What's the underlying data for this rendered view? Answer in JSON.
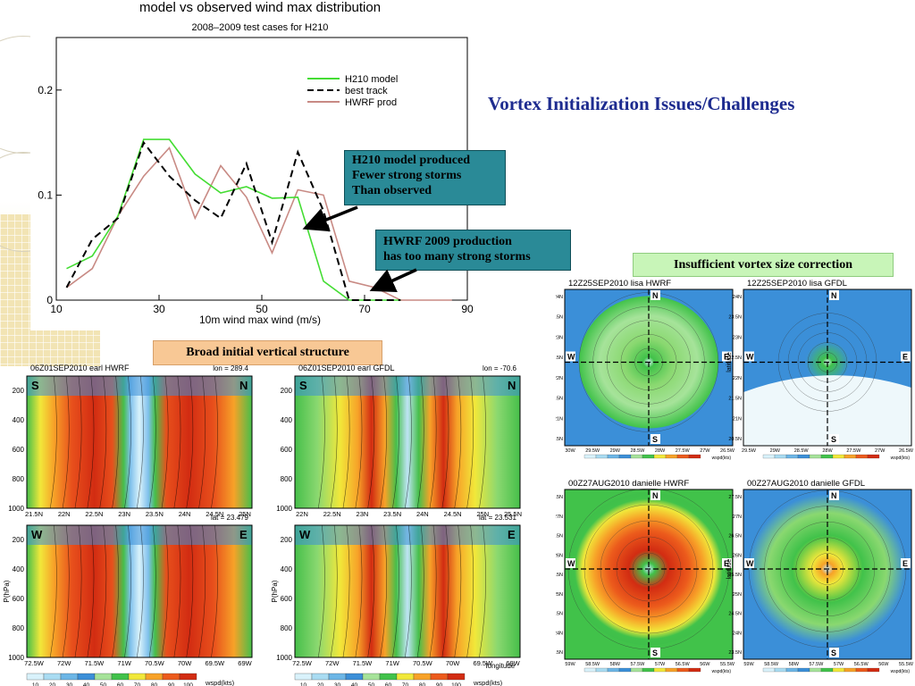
{
  "slide_title": "Vortex Initialization Issues/Challenges",
  "callouts": {
    "h210": [
      "H210 model produced",
      "Fewer strong storms",
      "Than observed"
    ],
    "hwrf": [
      "HWRF 2009 production",
      "has too many strong storms"
    ],
    "broad": "Broad initial vertical structure",
    "insufficient": "Insufficient vortex size correction"
  },
  "chart_data": {
    "type": "line",
    "title": "model vs observed wind max distribution",
    "subtitle": "2008–2009 test cases for H210",
    "xlabel": "10m wind max wind (m/s)",
    "ylabel": "",
    "xlim": [
      10,
      90
    ],
    "ylim": [
      0,
      0.25
    ],
    "xticks": [
      "10",
      "30",
      "50",
      "70",
      "90"
    ],
    "yticks": [
      "0",
      "0.1",
      "0.2"
    ],
    "legend": "top-right",
    "series": [
      {
        "name": "H210 model",
        "color": "#44dd33",
        "dash": "solid",
        "x": [
          12,
          17,
          22,
          27,
          32,
          37,
          42,
          47,
          52,
          57,
          62,
          67,
          72,
          77
        ],
        "y": [
          0.03,
          0.042,
          0.08,
          0.153,
          0.153,
          0.12,
          0.102,
          0.108,
          0.097,
          0.098,
          0.018,
          0,
          0,
          0
        ]
      },
      {
        "name": "best track",
        "color": "#000000",
        "dash": "dashed",
        "x": [
          12,
          17,
          22,
          27,
          32,
          37,
          42,
          47,
          52,
          57,
          62,
          67,
          72,
          77
        ],
        "y": [
          0.012,
          0.058,
          0.078,
          0.15,
          0.118,
          0.095,
          0.078,
          0.13,
          0.055,
          0.141,
          0.085,
          0,
          0,
          0
        ]
      },
      {
        "name": "HWRF prod",
        "color": "#c88a84",
        "dash": "solid",
        "x": [
          12,
          17,
          22,
          27,
          32,
          37,
          42,
          47,
          52,
          57,
          62,
          67,
          72,
          77,
          82,
          87
        ],
        "y": [
          0.012,
          0.03,
          0.08,
          0.118,
          0.145,
          0.078,
          0.128,
          0.098,
          0.045,
          0.105,
          0.1,
          0.018,
          0.012,
          0,
          0,
          0
        ]
      }
    ]
  },
  "cross_sections": {
    "tl": {
      "title": "06Z01SEP2010  earl  HWRF",
      "extra": "lon = 289.4"
    },
    "tr": {
      "title": "06Z01SEP2010  earl  GFDL",
      "extra": "lon = -70.6"
    },
    "bl": {
      "extra": "lat = 23.479"
    },
    "br": {
      "extra": "lat = 23.531"
    },
    "left_label": "S",
    "right_label": "N",
    "left_label2": "W",
    "right_label2": "E",
    "yaxis_label": "P(hPa)",
    "pressure_ticks": [
      "200",
      "400",
      "600",
      "800",
      "1000"
    ],
    "lat_ticks_l": [
      "21.5N",
      "22N",
      "22.5N",
      "23N",
      "23.5N",
      "24N",
      "24.5N",
      "25N"
    ],
    "lat_ticks_r": [
      "22N",
      "22.5N",
      "23N",
      "23.5N",
      "24N",
      "24.5N",
      "25N",
      "25.5N"
    ],
    "lon_ticks_l": [
      "72.5W",
      "72W",
      "71.5W",
      "71W",
      "70.5W",
      "70W",
      "69.5W",
      "69W"
    ],
    "lon_ticks_r": [
      "72.5W",
      "72W",
      "71.5W",
      "71W",
      "70.5W",
      "70W",
      "69.5W",
      "69W"
    ],
    "xaxis_label": "longitude",
    "colorbar_ticks": [
      "10",
      "20",
      "30",
      "40",
      "50",
      "60",
      "70",
      "80",
      "90",
      "100"
    ],
    "colorbar_label": "wspd(kts)"
  },
  "plan_views": {
    "lisa_hwrf": {
      "title": "12Z25SEP2010  lisa  HWRF",
      "lats": [
        "24N",
        "23.5N",
        "23N",
        "22.5N",
        "22N",
        "21.5N",
        "21N",
        "20.5N"
      ],
      "lons": [
        "30W",
        "29.5W",
        "29W",
        "28.5W",
        "28W",
        "27.5W",
        "27W",
        "26.5W"
      ]
    },
    "lisa_gfdl": {
      "title": "12Z25SEP2010  lisa  GFDL",
      "lats": [
        "24N",
        "23.5N",
        "23N",
        "22.5N",
        "22N",
        "21.5N",
        "21N",
        "20.5N"
      ],
      "lons": [
        "29.5W",
        "29W",
        "28.5W",
        "28W",
        "27.5W",
        "27W",
        "26.5W"
      ]
    },
    "danielle_hwrf": {
      "title": "00Z27AUG2010  danielle  HWRF",
      "lats": [
        "27.5N",
        "27N",
        "26.5N",
        "26N",
        "25.5N",
        "25N",
        "24.5N",
        "24N",
        "23.5N"
      ],
      "lons": [
        "59W",
        "58.5W",
        "58W",
        "57.5W",
        "57W",
        "56.5W",
        "56W",
        "55.5W"
      ]
    },
    "danielle_gfdl": {
      "title": "00Z27AUG2010  danielle  GFDL",
      "lats": [
        "27.5N",
        "27N",
        "26.5N",
        "26N",
        "25.5N",
        "25N",
        "24.5N",
        "24N",
        "23.5N"
      ],
      "lons": [
        "59W",
        "58.5W",
        "58W",
        "57.5W",
        "57W",
        "56.5W",
        "56W",
        "55.5W"
      ]
    },
    "latitude_label": "latitude",
    "dir_n": "N",
    "dir_s": "S",
    "dir_w": "W",
    "dir_e": "E",
    "colorbar_label": "wspd(kts)"
  }
}
